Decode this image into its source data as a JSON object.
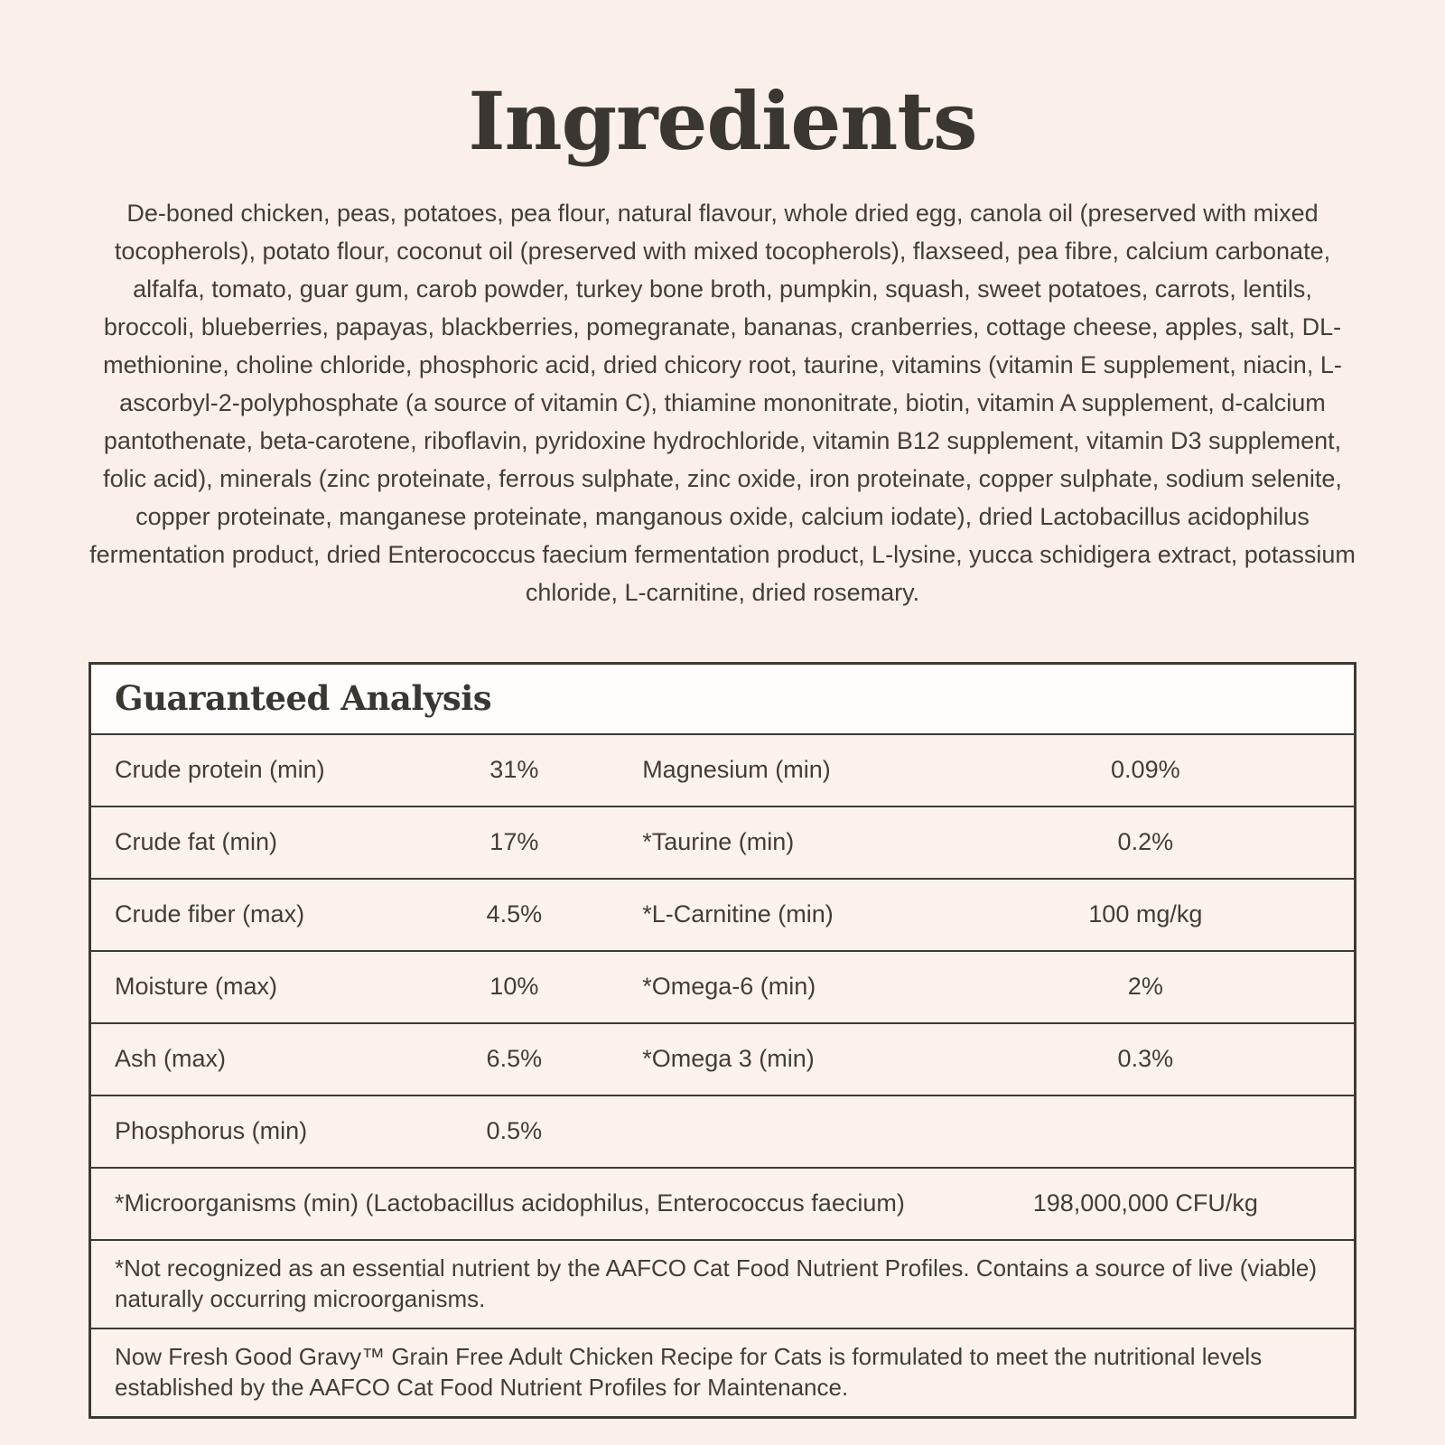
{
  "page": {
    "title": "Ingredients",
    "ingredients_text": "De-boned chicken, peas, potatoes, pea flour, natural flavour, whole dried egg, canola oil (preserved with mixed tocopherols), potato flour, coconut oil (preserved with mixed tocopherols), flaxseed, pea fibre, calcium carbonate, alfalfa, tomato, guar gum, carob powder, turkey bone broth, pumpkin, squash, sweet potatoes, carrots, lentils, broccoli, blueberries, papayas, blackberries, pomegranate, bananas, cranberries, cottage cheese, apples, salt, DL-methionine, choline chloride, phosphoric acid, dried chicory root, taurine, vitamins (vitamin E supplement, niacin, L-ascorbyl-2-polyphosphate (a source of vitamin C), thiamine mononitrate, biotin, vitamin A supplement, d-calcium pantothenate, beta-carotene, riboflavin, pyridoxine hydrochloride, vitamin B12 supplement, vitamin D3 supplement, folic acid), minerals (zinc proteinate, ferrous sulphate, zinc oxide, iron proteinate, copper sulphate, sodium selenite, copper proteinate, manganese proteinate, manganous oxide, calcium iodate), dried Lactobacillus acidophilus fermentation product, dried Enterococcus faecium fermentation product, L-lysine, yucca schidigera extract, potassium chloride, L-carnitine, dried rosemary."
  },
  "analysis": {
    "title": "Guaranteed Analysis",
    "rows": [
      {
        "label1": "Crude protein (min)",
        "value1": "31%",
        "label2": "Magnesium (min)",
        "value2": "0.09%"
      },
      {
        "label1": "Crude fat (min)",
        "value1": "17%",
        "label2": "*Taurine (min)",
        "value2": "0.2%"
      },
      {
        "label1": "Crude fiber (max)",
        "value1": "4.5%",
        "label2": "*L-Carnitine (min)",
        "value2": "100 mg/kg"
      },
      {
        "label1": "Moisture (max)",
        "value1": "10%",
        "label2": "*Omega-6 (min)",
        "value2": "2%"
      },
      {
        "label1": "Ash (max)",
        "value1": "6.5%",
        "label2": "*Omega 3 (min)",
        "value2": "0.3%"
      },
      {
        "label1": "Phosphorus (min)",
        "value1": "0.5%",
        "label2": "",
        "value2": ""
      }
    ],
    "microorganisms": {
      "label": "*Microorganisms (min) (Lactobacillus acidophilus, Enterococcus faecium)",
      "value": "198,000,000 CFU/kg"
    },
    "footnotes": [
      "*Not recognized as an essential nutrient by the AAFCO Cat Food Nutrient Profiles. Contains a source of live (viable) naturally occurring microorganisms.",
      "Now Fresh Good Gravy™ Grain Free Adult Chicken Recipe for Cats is formulated to meet the nutritional levels established by the AAFCO Cat Food Nutrient Profiles for Maintenance."
    ]
  },
  "colors": {
    "page_background": "#fbf0e9",
    "table_background": "#fcf2ec",
    "header_background": "#fffdfb",
    "border": "#3d3a36",
    "text": "#413d39"
  }
}
